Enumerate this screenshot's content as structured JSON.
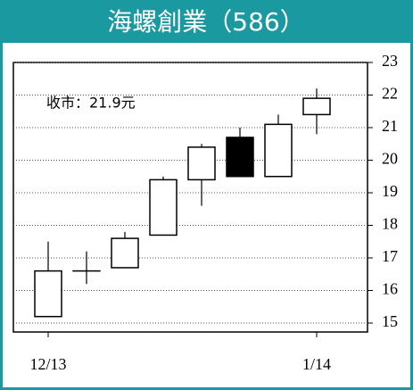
{
  "chart_data": {
    "type": "candlestick",
    "title": "海螺創業（586）",
    "annotation": "收市：21.9元",
    "categories": [
      "12/13",
      null,
      null,
      null,
      null,
      null,
      null,
      "1/14"
    ],
    "open": [
      15.2,
      16.6,
      16.7,
      17.7,
      19.4,
      20.7,
      19.5,
      21.4
    ],
    "high": [
      17.5,
      17.2,
      17.8,
      19.5,
      20.5,
      21.0,
      21.4,
      22.2
    ],
    "low": [
      15.2,
      16.2,
      16.7,
      17.7,
      18.6,
      19.5,
      19.5,
      20.8
    ],
    "close": [
      16.6,
      16.6,
      17.6,
      19.4,
      20.4,
      19.5,
      21.1,
      21.9
    ],
    "up_color": "#ffffff",
    "down_color": "#000000",
    "ylim": [
      15,
      23
    ],
    "yticks": [
      15,
      16,
      17,
      18,
      19,
      20,
      21,
      22,
      23
    ],
    "grid": true
  }
}
